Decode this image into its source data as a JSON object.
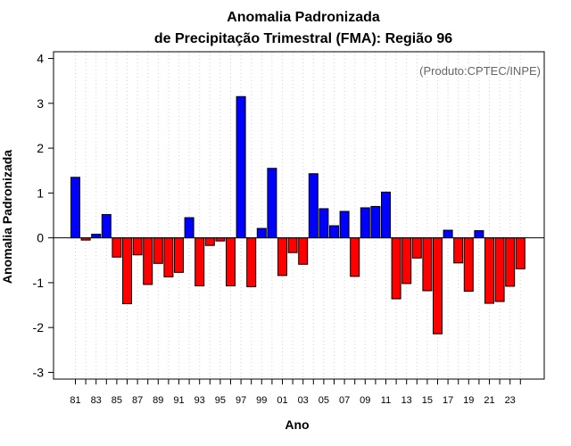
{
  "chart_data": {
    "type": "bar",
    "title": [
      "Anomalia Padronizada",
      "de Precipitação Trimestral (FMA): Região 96"
    ],
    "xlabel": "Ano",
    "ylabel": "Anomalia Padronizada",
    "annotation": "(Produto:CPTEC/INPE)",
    "ylim": [
      -3.15,
      4.15
    ],
    "yticks": [
      -3,
      -2,
      -1,
      0,
      1,
      2,
      3,
      4
    ],
    "ytick_labels": [
      "-3",
      "-2",
      "-1",
      "0",
      "1",
      "2",
      "3",
      "4"
    ],
    "xtick_labels": [
      "81",
      "83",
      "85",
      "87",
      "89",
      "91",
      "93",
      "95",
      "97",
      "99",
      "01",
      "03",
      "05",
      "07",
      "09",
      "11",
      "13",
      "15",
      "17",
      "19",
      "21",
      "23"
    ],
    "categories": [
      "1981",
      "1982",
      "1983",
      "1984",
      "1985",
      "1986",
      "1987",
      "1988",
      "1989",
      "1990",
      "1991",
      "1992",
      "1993",
      "1994",
      "1995",
      "1996",
      "1997",
      "1998",
      "1999",
      "2000",
      "2001",
      "2002",
      "2003",
      "2004",
      "2005",
      "2006",
      "2007",
      "2008",
      "2009",
      "2010",
      "2011",
      "2012",
      "2013",
      "2014",
      "2015",
      "2016",
      "2017",
      "2018",
      "2019",
      "2020",
      "2021",
      "2022",
      "2023",
      "2024"
    ],
    "values": [
      1.35,
      -0.05,
      0.08,
      0.52,
      -0.43,
      -1.47,
      -0.38,
      -1.04,
      -0.57,
      -0.87,
      -0.77,
      0.45,
      -1.07,
      -0.17,
      -0.07,
      -1.07,
      3.15,
      -1.09,
      0.21,
      1.55,
      -0.84,
      -0.33,
      -0.59,
      1.43,
      0.65,
      0.27,
      0.59,
      -0.86,
      0.67,
      0.7,
      1.02,
      -1.36,
      -1.02,
      -0.45,
      -1.18,
      -2.14,
      0.17,
      -0.56,
      -1.19,
      0.16,
      -1.46,
      -1.42,
      -1.08,
      -0.69
    ],
    "positive_color": "#0000ff",
    "negative_color": "#ff0000",
    "grid": true
  }
}
